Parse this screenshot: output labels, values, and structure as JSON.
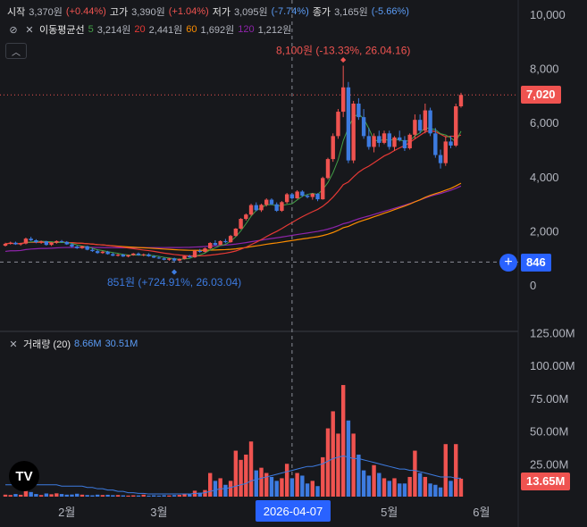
{
  "ohlc": {
    "open_label": "시작",
    "open": "3,370원",
    "open_chg": "(+0.44%)",
    "high_label": "고가",
    "high": "3,390원",
    "high_chg": "(+1.04%)",
    "low_label": "저가",
    "low": "3,095원",
    "low_chg": "(-7.74%)",
    "close_label": "종가",
    "close": "3,165원",
    "close_chg": "(-5.66%)"
  },
  "ma_legend": {
    "title": "이동평균선",
    "items": [
      {
        "period": "5",
        "value": "3,214원"
      },
      {
        "period": "20",
        "value": "2,441원"
      },
      {
        "period": "60",
        "value": "1,692원"
      },
      {
        "period": "120",
        "value": "1,212원"
      }
    ]
  },
  "volume_legend": {
    "title": "거래량 (20)",
    "v1": "8.66M",
    "v2": "30.51M"
  },
  "price_tag": "7,020",
  "crosshair_tag": "846",
  "volume_tag": "13.65M",
  "crosshair_date": "2026-04-07",
  "logo": "TV",
  "colors": {
    "up": "#ef5350",
    "down": "#3d7be0",
    "ma5": "#43a047",
    "ma20": "#e53935",
    "ma60": "#fb8c00",
    "ma120": "#8e24aa",
    "accent": "#2962ff"
  },
  "chart_data": {
    "type": "candlestick",
    "price_axis": {
      "ticks": [
        "10,000",
        "8,000",
        "6,000",
        "4,000",
        "2,000",
        "0"
      ],
      "range": [
        -1200,
        10000
      ]
    },
    "volume_axis": {
      "ticks": [
        "125.00M",
        "100.00M",
        "75.00M",
        "50.00M",
        "25.00M"
      ],
      "range": [
        0,
        125
      ]
    },
    "x_ticks": [
      "2월",
      "3월",
      "4월",
      "5월",
      "6월"
    ],
    "annotations": {
      "high": "8,100원 (-13.33%, 26.04.16)",
      "low": "851원 (+724.91%, 26.03.04)"
    },
    "candles": [
      [
        1450,
        1560,
        1420,
        1520
      ],
      [
        1520,
        1600,
        1490,
        1560
      ],
      [
        1560,
        1600,
        1480,
        1500
      ],
      [
        1500,
        1560,
        1450,
        1530
      ],
      [
        1530,
        1750,
        1500,
        1710
      ],
      [
        1710,
        1780,
        1620,
        1650
      ],
      [
        1650,
        1690,
        1540,
        1580
      ],
      [
        1580,
        1640,
        1520,
        1610
      ],
      [
        1610,
        1630,
        1450,
        1480
      ],
      [
        1480,
        1580,
        1440,
        1560
      ],
      [
        1560,
        1650,
        1520,
        1620
      ],
      [
        1620,
        1660,
        1560,
        1590
      ],
      [
        1590,
        1620,
        1480,
        1500
      ],
      [
        1500,
        1540,
        1380,
        1420
      ],
      [
        1420,
        1460,
        1330,
        1360
      ],
      [
        1360,
        1450,
        1330,
        1430
      ],
      [
        1430,
        1450,
        1280,
        1300
      ],
      [
        1300,
        1360,
        1220,
        1250
      ],
      [
        1250,
        1300,
        1150,
        1180
      ],
      [
        1180,
        1260,
        1150,
        1230
      ],
      [
        1230,
        1260,
        1120,
        1140
      ],
      [
        1140,
        1190,
        1060,
        1080
      ],
      [
        1080,
        1150,
        1050,
        1120
      ],
      [
        1120,
        1150,
        1030,
        1050
      ],
      [
        1050,
        1120,
        1020,
        1100
      ],
      [
        1100,
        1180,
        1080,
        1160
      ],
      [
        1160,
        1200,
        1080,
        1100
      ],
      [
        1100,
        1160,
        1060,
        1130
      ],
      [
        1130,
        1170,
        1040,
        1060
      ],
      [
        1060,
        1100,
        990,
        1010
      ],
      [
        1010,
        1060,
        960,
        980
      ],
      [
        980,
        1020,
        910,
        930
      ],
      [
        930,
        1000,
        890,
        980
      ],
      [
        980,
        1010,
        851,
        900
      ],
      [
        900,
        980,
        880,
        960
      ],
      [
        960,
        1090,
        940,
        1070
      ],
      [
        1070,
        1110,
        1000,
        1020
      ],
      [
        1020,
        1300,
        1000,
        1260
      ],
      [
        1260,
        1330,
        1180,
        1220
      ],
      [
        1220,
        1380,
        1200,
        1350
      ],
      [
        1350,
        1580,
        1320,
        1550
      ],
      [
        1550,
        1650,
        1450,
        1480
      ],
      [
        1480,
        1650,
        1460,
        1620
      ],
      [
        1620,
        1700,
        1540,
        1580
      ],
      [
        1580,
        1850,
        1560,
        1810
      ],
      [
        1810,
        2100,
        1790,
        2080
      ],
      [
        2080,
        2470,
        2050,
        2440
      ],
      [
        2440,
        2640,
        2380,
        2600
      ],
      [
        2600,
        3000,
        2550,
        2950
      ],
      [
        2950,
        3050,
        2720,
        2760
      ],
      [
        2760,
        3000,
        2700,
        2960
      ],
      [
        2960,
        3200,
        2900,
        3150
      ],
      [
        3150,
        3200,
        2950,
        2980
      ],
      [
        2980,
        3050,
        2700,
        2740
      ],
      [
        2740,
        3100,
        2700,
        3060
      ],
      [
        3060,
        3400,
        3000,
        3350
      ],
      [
        3350,
        3400,
        3150,
        3200
      ],
      [
        3200,
        3500,
        3180,
        3450
      ],
      [
        3450,
        3500,
        3250,
        3300
      ],
      [
        3300,
        3350,
        3200,
        3250
      ],
      [
        3250,
        3400,
        3150,
        3370
      ],
      [
        3370,
        3390,
        3095,
        3165
      ],
      [
        3165,
        4000,
        3150,
        3950
      ],
      [
        3950,
        4700,
        3900,
        4650
      ],
      [
        4650,
        5600,
        4550,
        5500
      ],
      [
        5500,
        6500,
        5400,
        6400
      ],
      [
        6400,
        8100,
        6200,
        7300
      ],
      [
        7300,
        7500,
        4500,
        4600
      ],
      [
        4600,
        6800,
        4500,
        6700
      ],
      [
        6700,
        6900,
        6100,
        6200
      ],
      [
        6200,
        6500,
        5400,
        5500
      ],
      [
        5500,
        5800,
        5000,
        5100
      ],
      [
        5100,
        5600,
        4900,
        5500
      ],
      [
        5500,
        5700,
        5100,
        5250
      ],
      [
        5250,
        5700,
        5200,
        5600
      ],
      [
        5600,
        5700,
        5000,
        5100
      ],
      [
        5100,
        5500,
        4950,
        5450
      ],
      [
        5450,
        5700,
        5300,
        5350
      ],
      [
        5350,
        5500,
        4950,
        5050
      ],
      [
        5050,
        5600,
        5000,
        5550
      ],
      [
        5550,
        6300,
        5400,
        6100
      ],
      [
        6100,
        6300,
        5600,
        5700
      ],
      [
        5700,
        6700,
        5600,
        6450
      ],
      [
        6450,
        6550,
        5500,
        5600
      ],
      [
        5600,
        5800,
        4700,
        4800
      ],
      [
        4800,
        5000,
        4300,
        4500
      ],
      [
        4500,
        5500,
        4400,
        5300
      ],
      [
        5300,
        5500,
        5050,
        5150
      ],
      [
        5150,
        6700,
        5100,
        6600
      ],
      [
        6600,
        7100,
        6550,
        7020
      ]
    ],
    "volumes": [
      1.5,
      1.2,
      2.0,
      1.4,
      8.0,
      3.5,
      2.0,
      1.2,
      2.4,
      1.8,
      2.5,
      2.0,
      1.5,
      1.6,
      2.2,
      1.5,
      1.2,
      1.0,
      1.5,
      1.2,
      1.4,
      1.1,
      1.2,
      1.0,
      0.8,
      1.0,
      0.9,
      1.5,
      0.8,
      1.0,
      0.8,
      1.1,
      0.9,
      1.2,
      1.3,
      2.0,
      1.8,
      4.5,
      3.0,
      5.0,
      18.0,
      12.0,
      14.0,
      9.0,
      12.0,
      35.0,
      28.0,
      32.0,
      42.0,
      20.0,
      22.0,
      18.0,
      15.0,
      12.0,
      14.0,
      25.0,
      14.0,
      18.0,
      16.0,
      10.0,
      12.0,
      8.0,
      30.0,
      52.0,
      65.0,
      48.0,
      85.0,
      58.0,
      48.0,
      32.0,
      20.0,
      16.0,
      24.0,
      18.0,
      14.0,
      12.0,
      14.0,
      10.0,
      10.0,
      15.0,
      35.0,
      18.0,
      15.0,
      10.0,
      9.0,
      7.0,
      40.0,
      12.0,
      40.0,
      13.65
    ],
    "volume_line": [
      9,
      9,
      9,
      9,
      9,
      9,
      9,
      9,
      9,
      9,
      9,
      8,
      8,
      8,
      8,
      8,
      7,
      7,
      6,
      6,
      5,
      5,
      4,
      4,
      3,
      3,
      2.5,
      2.5,
      2,
      2,
      2,
      2,
      2,
      2,
      2,
      2,
      2,
      2.5,
      2.5,
      3,
      4,
      5,
      6,
      6,
      7,
      8,
      9,
      10,
      12,
      13,
      14,
      15,
      16,
      17,
      18,
      19,
      20,
      21,
      22,
      23,
      23,
      24,
      25,
      27,
      29,
      30,
      31,
      30,
      29,
      29,
      28,
      27,
      26,
      25,
      24,
      23,
      22,
      21,
      21,
      20,
      20,
      19,
      18,
      17,
      16,
      15,
      15,
      15,
      14,
      14
    ],
    "ma5": [
      null,
      null,
      null,
      null,
      1560,
      1590,
      1604,
      1612,
      1604,
      1596,
      1568,
      1570,
      1560,
      1534,
      1478,
      1440,
      1406,
      1354,
      1300,
      1270,
      1230,
      1196,
      1166,
      1126,
      1110,
      1104,
      1102,
      1100,
      1098,
      1080,
      1058,
      1020,
      994,
      970,
      950,
      960,
      980,
      1060,
      1110,
      1180,
      1292,
      1372,
      1456,
      1500,
      1608,
      1780,
      2000,
      2260,
      2540,
      2752,
      2852,
      2958,
      2972,
      2916,
      2938,
      2974,
      2998,
      3142,
      3278,
      3344,
      3386,
      3342,
      3526,
      3780,
      4144,
      4620,
      5330,
      5810,
      6200,
      6320,
      6140,
      5780,
      5360,
      5310,
      5390,
      5330,
      5390,
      5350,
      5320,
      5320,
      5510,
      5620,
      5810,
      5770,
      5740,
      5590,
      5540,
      5430,
      5290,
      5680
    ]
  }
}
